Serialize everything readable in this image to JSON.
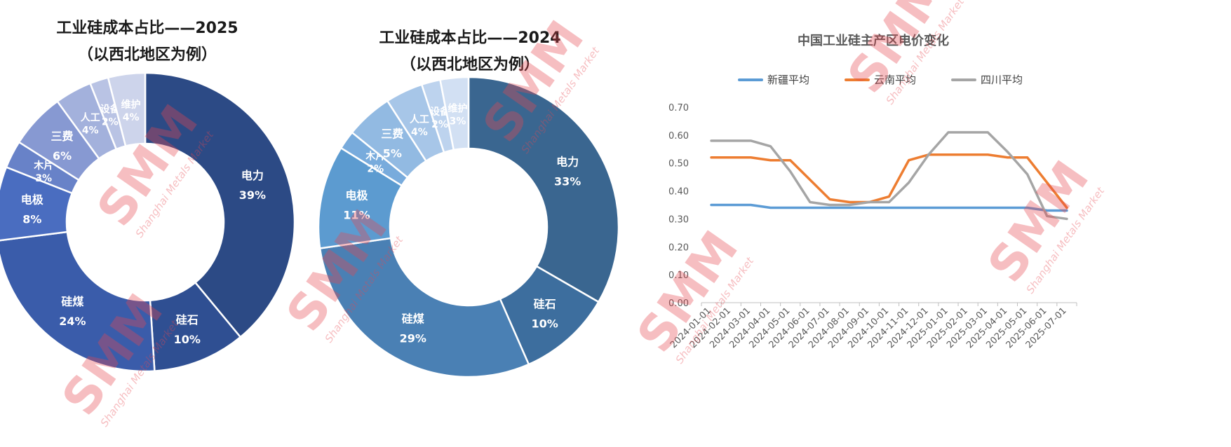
{
  "chart_data": [
    {
      "type": "donut",
      "title": "工业硅成本占比——2025",
      "subtitle": "（以西北地区为例）",
      "categories": [
        "电力",
        "硅石",
        "硅煤",
        "电极",
        "木片",
        "三费",
        "人工",
        "设备",
        "维护"
      ],
      "values": [
        39,
        10,
        24,
        8,
        3,
        6,
        4,
        2,
        4
      ],
      "labels": [
        "39%",
        "10%",
        "24%",
        "8%",
        "3%",
        "6%",
        "4%",
        "2%",
        "4%"
      ],
      "colors": [
        "#2c4a85",
        "#2f4f92",
        "#3a5caa",
        "#4a6dc0",
        "#6882c8",
        "#8799d2",
        "#a3b1dc",
        "#b9c3e4",
        "#cdd4eb"
      ]
    },
    {
      "type": "donut",
      "title": "工业硅成本占比——2024",
      "subtitle": "（以西北地区为例）",
      "categories": [
        "电力",
        "硅石",
        "硅煤",
        "电极",
        "木片",
        "三费",
        "人工",
        "设备",
        "维护"
      ],
      "values": [
        33,
        10,
        29,
        11,
        2,
        5,
        4,
        2,
        3
      ],
      "labels": [
        "33%",
        "10%",
        "29%",
        "11%",
        "2%",
        "5%",
        "4%",
        "2%",
        "3%"
      ],
      "colors": [
        "#3a6690",
        "#3d6e9e",
        "#4a80b4",
        "#5c9bd0",
        "#78abdc",
        "#92bae2",
        "#a7c6e8",
        "#bdd3ee",
        "#d2e0f3"
      ]
    },
    {
      "type": "line",
      "title": "中国工业硅主产区电价变化",
      "x": [
        "2024-01-01",
        "2024-02-01",
        "2024-03-01",
        "2024-04-01",
        "2024-05-01",
        "2024-06-01",
        "2024-07-01",
        "2024-08-01",
        "2024-09-01",
        "2024-10-01",
        "2024-11-01",
        "2024-12-01",
        "2025-01-01",
        "2025-02-01",
        "2025-03-01",
        "2025-04-01",
        "2025-05-01",
        "2025-06-01",
        "2025-07-01"
      ],
      "yticks": [
        "0.00",
        "0.10",
        "0.20",
        "0.30",
        "0.40",
        "0.50",
        "0.60",
        "0.70"
      ],
      "ylim": [
        0,
        0.7
      ],
      "grid": false,
      "legend_position": "top",
      "series": [
        {
          "name": "新疆平均",
          "color": "#5b9bd5",
          "values": [
            0.35,
            0.35,
            0.35,
            0.34,
            0.34,
            0.34,
            0.34,
            0.34,
            0.34,
            0.34,
            0.34,
            0.34,
            0.34,
            0.34,
            0.34,
            0.34,
            0.34,
            0.33,
            0.33
          ]
        },
        {
          "name": "云南平均",
          "color": "#ed7d31",
          "values": [
            0.52,
            0.52,
            0.52,
            0.51,
            0.51,
            0.44,
            0.37,
            0.36,
            0.36,
            0.38,
            0.51,
            0.53,
            0.53,
            0.53,
            0.53,
            0.52,
            0.52,
            0.43,
            0.34
          ]
        },
        {
          "name": "四川平均",
          "color": "#a5a5a5",
          "values": [
            0.58,
            0.58,
            0.58,
            0.56,
            0.47,
            0.36,
            0.35,
            0.35,
            0.36,
            0.36,
            0.43,
            0.53,
            0.61,
            0.61,
            0.61,
            0.54,
            0.46,
            0.31,
            0.3
          ]
        }
      ]
    }
  ],
  "watermark": {
    "brand": "SMM",
    "sub": "Shanghai Metals Market"
  }
}
